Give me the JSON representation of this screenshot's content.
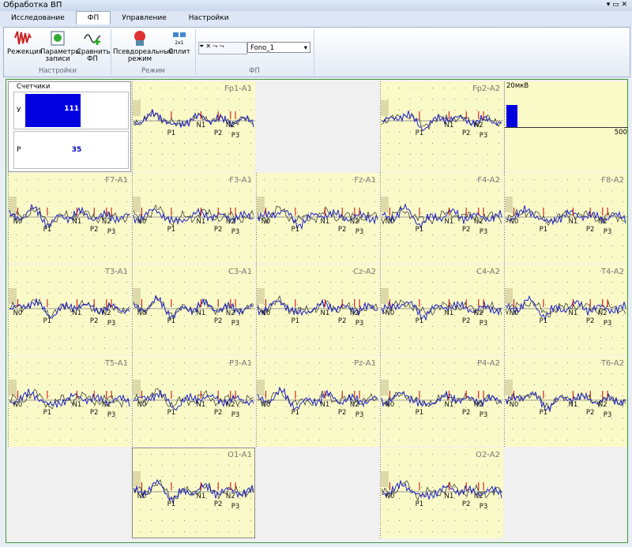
{
  "window": {
    "title": "Обработка ВП"
  },
  "tabs": [
    "Исследование",
    "ФП",
    "Управление",
    "Настройки"
  ],
  "ribbon": {
    "groups": [
      {
        "label": "Настройки",
        "buttons": [
          "Режекция",
          "Параметры записи",
          "Сравнить ФП"
        ]
      },
      {
        "label": "Режим",
        "buttons": [
          "Псевдореальный режим",
          "Сплит"
        ],
        "icon_text": "2x1"
      },
      {
        "label": "ФП",
        "dropdown": "Fono_1"
      }
    ]
  },
  "counters": {
    "title": "Счетчики",
    "rows": [
      {
        "label": "У",
        "value": "111"
      },
      {
        "label": "Р",
        "value": "35"
      }
    ]
  },
  "scale": {
    "amplitude": "20мкВ",
    "time": "500"
  },
  "channels": [
    {
      "label": "Fp1-A1",
      "peaks": [
        "N1",
        "P1",
        "N2",
        "P2",
        "P3"
      ]
    },
    {
      "label": "Fp2-A2",
      "peaks": [
        "N1",
        "P1",
        "N2",
        "P2",
        "P3"
      ]
    },
    {
      "label": "F7-A1",
      "peaks": [
        "N0",
        "P1",
        "N1",
        "P2",
        "N2",
        "P3"
      ]
    },
    {
      "label": "F3-A1",
      "peaks": [
        "N0",
        "P1",
        "N1",
        "P2",
        "N2",
        "P3"
      ]
    },
    {
      "label": "Fz-A1",
      "peaks": [
        "N0",
        "P1",
        "N1",
        "P2",
        "N2",
        "P3"
      ]
    },
    {
      "label": "F4-A2",
      "peaks": [
        "N0",
        "P1",
        "N1",
        "P2",
        "N2",
        "P3"
      ]
    },
    {
      "label": "F8-A2",
      "peaks": [
        "N0",
        "P1",
        "N1",
        "P2",
        "N2",
        "P3"
      ]
    },
    {
      "label": "T3-A1",
      "peaks": [
        "N0",
        "P1",
        "N1",
        "P2",
        "N2",
        "P3"
      ]
    },
    {
      "label": "C3-A1",
      "peaks": [
        "N0",
        "P1",
        "N1",
        "P2",
        "N2",
        "P3"
      ]
    },
    {
      "label": "Cz-A2",
      "peaks": [
        "N0",
        "P1",
        "N1",
        "P2",
        "N2",
        "P3"
      ]
    },
    {
      "label": "C4-A2",
      "peaks": [
        "N0",
        "P1",
        "N1",
        "P2",
        "N2",
        "P3"
      ]
    },
    {
      "label": "T4-A2",
      "peaks": [
        "N0",
        "P1",
        "N1",
        "P2",
        "N2",
        "P3"
      ]
    },
    {
      "label": "T5-A1",
      "peaks": [
        "N0",
        "P1",
        "N1",
        "P2",
        "N2",
        "P3"
      ]
    },
    {
      "label": "P3-A1",
      "peaks": [
        "N0",
        "P1",
        "N1",
        "P2",
        "N2",
        "P3"
      ]
    },
    {
      "label": "Pz-A1",
      "peaks": [
        "N0",
        "P1",
        "N1",
        "P2",
        "N2",
        "P3"
      ]
    },
    {
      "label": "P4-A2",
      "peaks": [
        "N0",
        "P1",
        "N1",
        "P2",
        "N2",
        "P3"
      ]
    },
    {
      "label": "T6-A2",
      "peaks": [
        "N0",
        "P1",
        "N1",
        "P2",
        "N2",
        "P3"
      ]
    },
    {
      "label": "O1-A1",
      "peaks": [
        "N0",
        "P1",
        "N1",
        "P2",
        "N2",
        "P3"
      ]
    },
    {
      "label": "O2-A2",
      "peaks": [
        "N0",
        "P1",
        "N1",
        "P2",
        "N2",
        "P3"
      ]
    }
  ]
}
